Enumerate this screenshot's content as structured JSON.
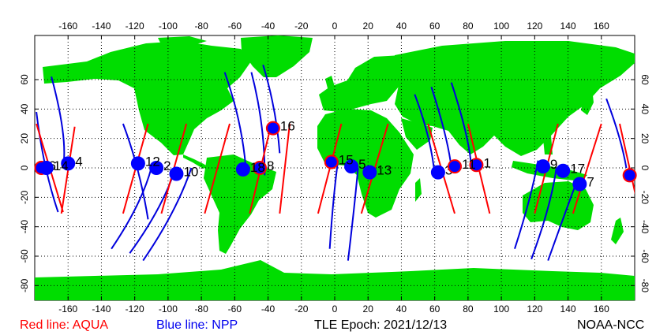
{
  "legend": {
    "aqua_text": "Red line: AQUA",
    "npp_text": "Blue line: NPP",
    "epoch_text": "TLE Epoch: 2021/12/13",
    "credit_text": "NOAA-NCC"
  },
  "colors": {
    "land": "#00dd00",
    "aqua": "#ff0000",
    "npp": "#0000dd",
    "node_fill": "#0000ff"
  },
  "axes": {
    "lon_ticks": [
      "-160",
      "-140",
      "-120",
      "-100",
      "-80",
      "-60",
      "-40",
      "-20",
      "0",
      "20",
      "40",
      "60",
      "80",
      "100",
      "120",
      "140",
      "160"
    ],
    "lat_ticks": [
      "60",
      "40",
      "20",
      "0",
      "-20",
      "-40",
      "-60",
      "-80"
    ],
    "lon_range": [
      -180,
      180
    ],
    "lat_range": [
      -90,
      90
    ],
    "grid": true
  },
  "passes": [
    {
      "label": "1",
      "lon": 85,
      "lat": 2,
      "aqua": true
    },
    {
      "label": "2",
      "lon": -107,
      "lat": 0,
      "aqua": false
    },
    {
      "label": "3",
      "lon": 62,
      "lat": -3,
      "aqua": false
    },
    {
      "label": "4",
      "lon": -160,
      "lat": 3,
      "aqua": false
    },
    {
      "label": "5",
      "lon": 10,
      "lat": 1,
      "aqua": false
    },
    {
      "label": "6",
      "lon": -176,
      "lat": 0,
      "aqua": true
    },
    {
      "label": "7",
      "lon": 147,
      "lat": -11,
      "aqua": false
    },
    {
      "label": "8",
      "lon": -45,
      "lat": 0,
      "aqua": true
    },
    {
      "label": "9",
      "lon": 125,
      "lat": 1,
      "aqua": false
    },
    {
      "label": "10",
      "lon": -95,
      "lat": -4,
      "aqua": false
    },
    {
      "label": "11",
      "lon": 72,
      "lat": 1,
      "aqua": true
    },
    {
      "label": "12",
      "lon": -118,
      "lat": 3,
      "aqua": false
    },
    {
      "label": "13",
      "lon": 21,
      "lat": -3,
      "aqua": false
    },
    {
      "label": "14",
      "lon": -173,
      "lat": 0,
      "aqua": false
    },
    {
      "label": "15",
      "lon": -2,
      "lat": 4,
      "aqua": true
    },
    {
      "label": "16",
      "lon": -37,
      "lat": 27,
      "aqua": true
    },
    {
      "label": "17",
      "lon": 137,
      "lat": -2,
      "aqua": false
    },
    {
      "label": "18",
      "lon": -55,
      "lat": -1,
      "aqua": false
    },
    {
      "label": "",
      "lon": 177,
      "lat": -5,
      "aqua": true
    }
  ],
  "aqua_tracks": [
    {
      "lon0": -179,
      "lat0": 30,
      "lon1": -163,
      "lat1": -30
    },
    {
      "lon0": -156,
      "lat0": 28,
      "lon1": -164,
      "lat1": -31
    },
    {
      "lon0": -112,
      "lat0": 30,
      "lon1": -127,
      "lat1": -31
    },
    {
      "lon0": -89,
      "lat0": 30,
      "lon1": -104,
      "lat1": -31
    },
    {
      "lon0": -63,
      "lat0": 30,
      "lon1": -78,
      "lat1": -31
    },
    {
      "lon0": -38,
      "lat0": 30,
      "lon1": -51,
      "lat1": -31
    },
    {
      "lon0": -27,
      "lat0": 30,
      "lon1": -33,
      "lat1": -31
    },
    {
      "lon0": 4,
      "lat0": 30,
      "lon1": -10,
      "lat1": -31
    },
    {
      "lon0": 32,
      "lat0": 30,
      "lon1": 16,
      "lat1": -31
    },
    {
      "lon0": 56,
      "lat0": 30,
      "lon1": 72,
      "lat1": -31
    },
    {
      "lon0": 80,
      "lat0": 30,
      "lon1": 93,
      "lat1": -31
    },
    {
      "lon0": 134,
      "lat0": 30,
      "lon1": 120,
      "lat1": -31
    },
    {
      "lon0": 160,
      "lat0": 30,
      "lon1": 143,
      "lat1": -31
    },
    {
      "lon0": 171,
      "lat0": 30,
      "lon1": 183,
      "lat1": -31
    }
  ],
  "npp_tracks": [
    {
      "pts": [
        [
          -179,
          38
        ],
        [
          -175,
          0
        ],
        [
          -166,
          -30
        ]
      ]
    },
    {
      "pts": [
        [
          -170,
          62
        ],
        [
          -160,
          20
        ],
        [
          -163,
          0
        ]
      ]
    },
    {
      "pts": [
        [
          -112,
          -35
        ],
        [
          -117,
          0
        ],
        [
          -127,
          30
        ]
      ]
    },
    {
      "pts": [
        [
          -134,
          -55
        ],
        [
          -116,
          -25
        ],
        [
          -110,
          0
        ]
      ]
    },
    {
      "pts": [
        [
          -123,
          -58
        ],
        [
          -105,
          -30
        ],
        [
          -97,
          -5
        ]
      ]
    },
    {
      "pts": [
        [
          -115,
          -63
        ],
        [
          -95,
          -30
        ],
        [
          -86,
          0
        ]
      ]
    },
    {
      "pts": [
        [
          -66,
          65
        ],
        [
          -55,
          30
        ],
        [
          -53,
          -5
        ]
      ]
    },
    {
      "pts": [
        [
          -50,
          65
        ],
        [
          -42,
          30
        ],
        [
          -42,
          -5
        ]
      ]
    },
    {
      "pts": [
        [
          -43,
          70
        ],
        [
          -35,
          40
        ],
        [
          -33,
          10
        ]
      ]
    },
    {
      "pts": [
        [
          -3,
          -55
        ],
        [
          -1,
          -20
        ],
        [
          2,
          5
        ]
      ]
    },
    {
      "pts": [
        [
          8,
          -63
        ],
        [
          12,
          -25
        ],
        [
          14,
          0
        ]
      ]
    },
    {
      "pts": [
        [
          48,
          50
        ],
        [
          58,
          20
        ],
        [
          60,
          -5
        ]
      ]
    },
    {
      "pts": [
        [
          58,
          55
        ],
        [
          68,
          20
        ],
        [
          70,
          0
        ]
      ]
    },
    {
      "pts": [
        [
          70,
          58
        ],
        [
          81,
          20
        ],
        [
          82,
          0
        ]
      ]
    },
    {
      "pts": [
        [
          108,
          -55
        ],
        [
          118,
          -20
        ],
        [
          122,
          5
        ]
      ]
    },
    {
      "pts": [
        [
          118,
          -62
        ],
        [
          130,
          -25
        ],
        [
          133,
          0
        ]
      ]
    },
    {
      "pts": [
        [
          128,
          -63
        ],
        [
          140,
          -25
        ],
        [
          145,
          -10
        ]
      ]
    },
    {
      "pts": [
        [
          163,
          47
        ],
        [
          172,
          20
        ],
        [
          175,
          0
        ]
      ]
    }
  ]
}
